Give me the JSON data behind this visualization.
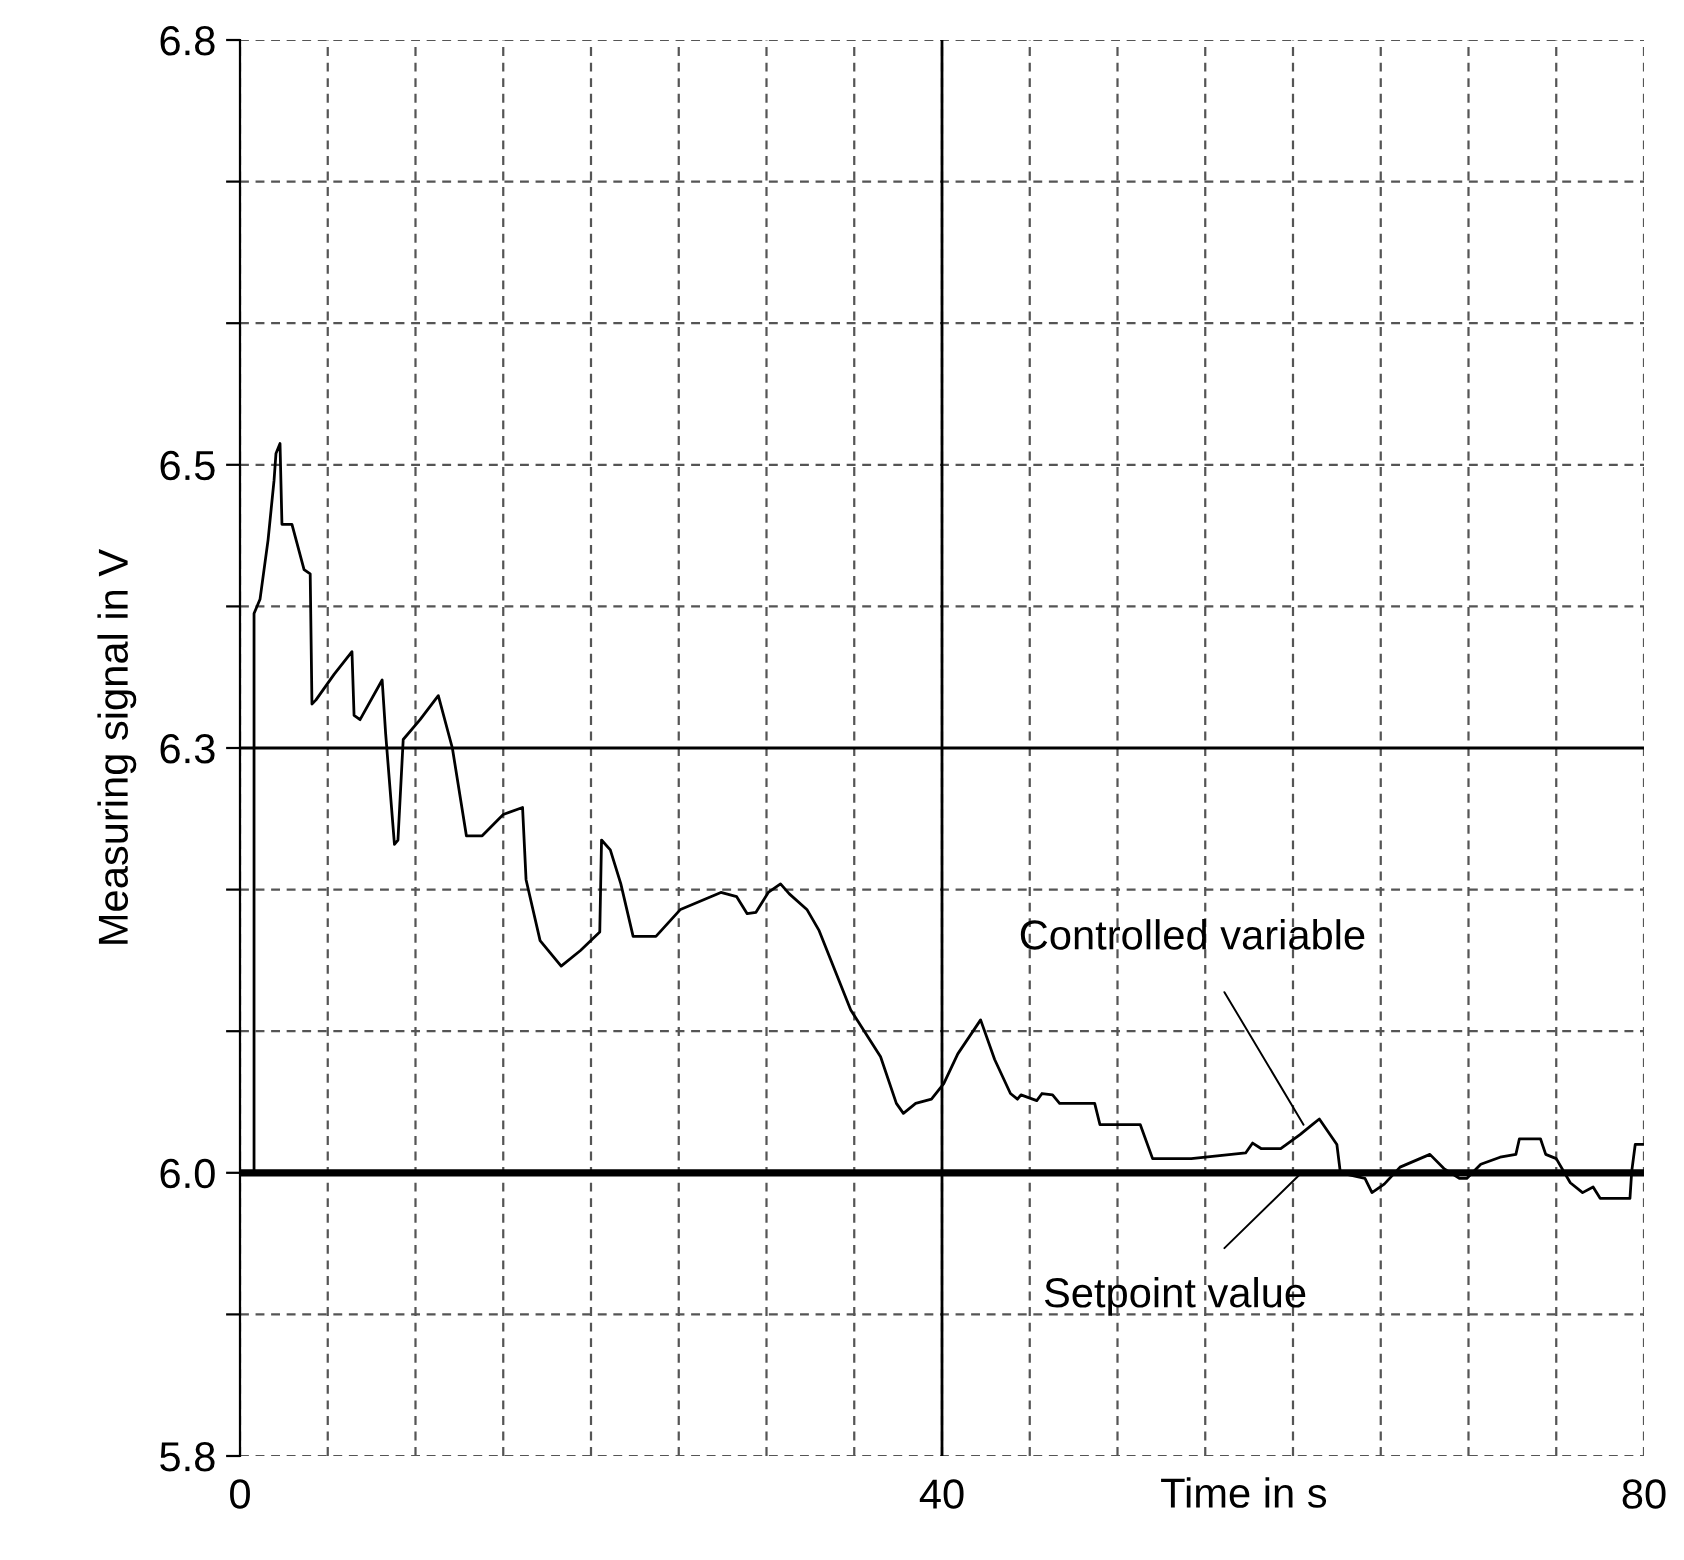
{
  "chart_data": {
    "type": "line",
    "xlabel": "Time in s",
    "ylabel": "Measuring signal in V",
    "xlim": [
      0,
      80
    ],
    "ylim": [
      5.8,
      6.8
    ],
    "xticks": [
      0,
      {
        "value": 5,
        "label": null
      },
      {
        "value": 10,
        "label": null
      },
      {
        "value": 15,
        "label": null
      },
      {
        "value": 20,
        "label": null
      },
      {
        "value": 25,
        "label": null
      },
      {
        "value": 30,
        "label": null
      },
      {
        "value": 35,
        "label": null
      },
      40,
      {
        "value": 45,
        "label": null
      },
      {
        "value": 50,
        "label": null
      },
      {
        "value": 55,
        "label": null
      },
      {
        "value": 60,
        "label": null
      },
      {
        "value": 65,
        "label": null
      },
      {
        "value": 70,
        "label": null
      },
      {
        "value": 75,
        "label": null
      },
      80
    ],
    "yticks": [
      5.8,
      {
        "value": 5.9,
        "label": null
      },
      {
        "value": 6.0,
        "label": "6.0"
      },
      {
        "value": 6.1,
        "label": null
      },
      {
        "value": 6.2,
        "label": null
      },
      6.3,
      {
        "value": 6.4,
        "label": null
      },
      6.5,
      {
        "value": 6.6,
        "label": null
      },
      {
        "value": 6.7,
        "label": null
      },
      6.8
    ],
    "grid": true,
    "legend": false,
    "marker": "none",
    "ref_lines": [
      {
        "axis": "x",
        "value": 40,
        "color": "#000000",
        "line_style": "solid"
      },
      {
        "axis": "y",
        "value": 6.3,
        "color": "#000000",
        "line_style": "solid"
      }
    ],
    "series": [
      {
        "color": "#000000",
        "line_style": "solid",
        "x": [
          0,
          0.8,
          0.8,
          1.14,
          1.6,
          1.94,
          2.05,
          2.28,
          2.39,
          2.96,
          3.65,
          4.0,
          4.1,
          4.33,
          5.36,
          6.38,
          6.5,
          6.84,
          8.1,
          8.3,
          8.8,
          9.0,
          9.3,
          10.26,
          11.3,
          12.1,
          12.9,
          13.8,
          15.0,
          16.1,
          16.3,
          17.1,
          18.3,
          19.4,
          20.5,
          20.6,
          21.1,
          21.7,
          22.4,
          23.7,
          25.1,
          27.4,
          28.3,
          28.9,
          29.4,
          30.1,
          30.8,
          31.3,
          32.3,
          33.0,
          34.8,
          36.5,
          37.4,
          37.8,
          38.5,
          39.4,
          40.1,
          40.9,
          42.2,
          43.0,
          43.9,
          44.3,
          44.5,
          45.4,
          45.7,
          46.3,
          46.7,
          48.7,
          49.0,
          51.3,
          52.0,
          54.2,
          57.3,
          57.7,
          58.2,
          59.3,
          60.4,
          61.1,
          61.5,
          62.5,
          62.7,
          64.1,
          64.5,
          65.2,
          66.1,
          67.8,
          68.6,
          69.5,
          69.9,
          70.7,
          71.8,
          72.7,
          72.9,
          74.1,
          74.4,
          75.0,
          75.8,
          76.5,
          77.1,
          77.5,
          79.2,
          79.3,
          79.5,
          80
        ],
        "values": [
          6.0,
          6.0,
          6.395,
          6.405,
          6.447,
          6.489,
          6.508,
          6.515,
          6.458,
          6.458,
          6.426,
          6.423,
          6.331,
          6.334,
          6.352,
          6.368,
          6.323,
          6.32,
          6.348,
          6.31,
          6.232,
          6.235,
          6.306,
          6.32,
          6.337,
          6.3,
          6.238,
          6.238,
          6.253,
          6.258,
          6.207,
          6.164,
          6.146,
          6.157,
          6.17,
          6.235,
          6.228,
          6.204,
          6.167,
          6.167,
          6.186,
          6.198,
          6.195,
          6.183,
          6.184,
          6.198,
          6.204,
          6.197,
          6.186,
          6.171,
          6.115,
          6.082,
          6.049,
          6.042,
          6.049,
          6.052,
          6.063,
          6.084,
          6.108,
          6.08,
          6.056,
          6.052,
          6.055,
          6.051,
          6.056,
          6.055,
          6.049,
          6.049,
          6.034,
          6.034,
          6.01,
          6.01,
          6.014,
          6.021,
          6.017,
          6.017,
          6.027,
          6.034,
          6.038,
          6.02,
          6.0,
          5.996,
          5.986,
          5.992,
          6.004,
          6.013,
          6.003,
          5.996,
          5.996,
          6.006,
          6.011,
          6.013,
          6.024,
          6.024,
          6.013,
          6.01,
          5.993,
          5.986,
          5.99,
          5.982,
          5.982,
          6.001,
          6.02,
          6.02
        ]
      },
      {
        "color": "#000000",
        "line_style": "solid",
        "x": [
          0,
          80
        ],
        "values": [
          6.0,
          6.0
        ]
      }
    ],
    "annotations": [
      {
        "text": "Controlled variable",
        "x": 60.6,
        "y": 6.034
      },
      {
        "text": "Setpoint value",
        "x": 60.4,
        "y": 5.999
      }
    ]
  }
}
